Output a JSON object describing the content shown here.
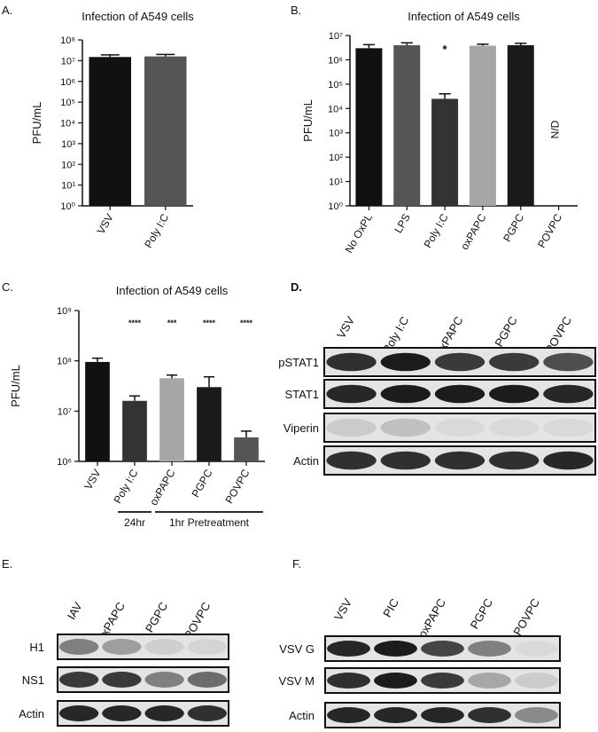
{
  "panel_labels": {
    "a": "A.",
    "b": "B.",
    "c": "C.",
    "d": "D.",
    "e": "E.",
    "f": "F."
  },
  "colors": {
    "black": "#111111",
    "dark_gray": "#333333",
    "mid_gray": "#555555",
    "light_gray": "#a6a6a6",
    "near_black": "#1a1a1a",
    "band": "#1c1c1c"
  },
  "chart_data": [
    {
      "type": "bar",
      "panel": "A",
      "title": "Infection of A549 cells",
      "ylabel": "PFU/mL",
      "yscale": "log",
      "ylim": [
        1,
        100000000
      ],
      "yticks": [
        "10⁰",
        "10¹",
        "10²",
        "10³",
        "10⁴",
        "10⁵",
        "10⁶",
        "10⁷",
        "10⁸"
      ],
      "categories": [
        "VSV",
        "Poly I:C"
      ],
      "values": [
        15000000,
        16000000
      ],
      "errors": [
        4000000,
        4000000
      ],
      "bar_colors": [
        "#111111",
        "#555555"
      ],
      "annotations": [
        "",
        ""
      ]
    },
    {
      "type": "bar",
      "panel": "B",
      "title": "Infection of A549 cells",
      "ylabel": "PFU/mL",
      "yscale": "log",
      "ylim": [
        1,
        10000000
      ],
      "yticks": [
        "10⁰",
        "10¹",
        "10²",
        "10³",
        "10⁴",
        "10⁵",
        "10⁶",
        "10⁷"
      ],
      "categories": [
        "No OxPL",
        "LPS",
        "Poly I:C",
        "oxPAPC",
        "PGPC",
        "POVPC"
      ],
      "values": [
        3000000,
        4000000,
        25000,
        3800000,
        4000000,
        null
      ],
      "errors": [
        1200000,
        1000000,
        15000,
        600000,
        800000,
        null
      ],
      "bar_colors": [
        "#111111",
        "#555555",
        "#333333",
        "#a6a6a6",
        "#1a1a1a",
        "#ffffff"
      ],
      "annotations": [
        "",
        "",
        "*",
        "",
        "",
        "N/D"
      ]
    },
    {
      "type": "bar",
      "panel": "C",
      "title": "Infection of A549 cells",
      "ylabel": "PFU/mL",
      "yscale": "log",
      "ylim": [
        1000000,
        1000000000
      ],
      "yticks": [
        "10⁶",
        "10⁷",
        "10⁸",
        "10⁹"
      ],
      "categories": [
        "VSV",
        "Poly I:C",
        "oxPAPC",
        "PGPC",
        "POVPC"
      ],
      "values": [
        95000000,
        16000000,
        45000000,
        30000000,
        3000000
      ],
      "errors": [
        18000000,
        4000000,
        7000000,
        18000000,
        1000000
      ],
      "bar_colors": [
        "#111111",
        "#333333",
        "#a6a6a6",
        "#1a1a1a",
        "#555555"
      ],
      "annotations": [
        "",
        "****",
        "***",
        "****",
        "****"
      ],
      "groups": [
        {
          "label": "24hr",
          "from": 1,
          "to": 1
        },
        {
          "label": "1hr Pretreatment",
          "from": 2,
          "to": 4
        }
      ]
    }
  ],
  "blots": {
    "d": {
      "columns": [
        "VSV",
        "Poly I:C",
        "oxPAPC",
        "PGPC",
        "POVPC"
      ],
      "rows": [
        {
          "label": "pSTAT1",
          "bands": [
            0.9,
            1.0,
            0.85,
            0.85,
            0.75
          ]
        },
        {
          "label": "STAT1",
          "bands": [
            0.95,
            1.0,
            1.0,
            1.0,
            0.95
          ]
        },
        {
          "label": "Viperin",
          "bands": [
            0.12,
            0.18,
            0.05,
            0.04,
            0.04
          ]
        },
        {
          "label": "Actin",
          "bands": [
            0.9,
            0.9,
            0.9,
            0.9,
            0.95
          ]
        }
      ]
    },
    "e": {
      "columns": [
        "IAV",
        "oxPAPC",
        "PGPC",
        "POVPC"
      ],
      "rows": [
        {
          "label": "H1",
          "bands": [
            0.5,
            0.35,
            0.1,
            0.08
          ]
        },
        {
          "label": "NS1",
          "bands": [
            0.85,
            0.85,
            0.5,
            0.6
          ]
        },
        {
          "label": "Actin",
          "bands": [
            0.95,
            0.95,
            0.95,
            0.9
          ]
        }
      ]
    },
    "f": {
      "columns": [
        "VSV",
        "PIC",
        "oxPAPC",
        "PGPC",
        "POVPC"
      ],
      "rows": [
        {
          "label": "VSV G",
          "bands": [
            0.95,
            1.0,
            0.8,
            0.5,
            0.05
          ]
        },
        {
          "label": "VSV M",
          "bands": [
            0.9,
            1.0,
            0.85,
            0.3,
            0.12
          ]
        },
        {
          "label": "Actin",
          "bands": [
            0.95,
            0.95,
            0.95,
            0.9,
            0.45
          ]
        }
      ]
    }
  }
}
